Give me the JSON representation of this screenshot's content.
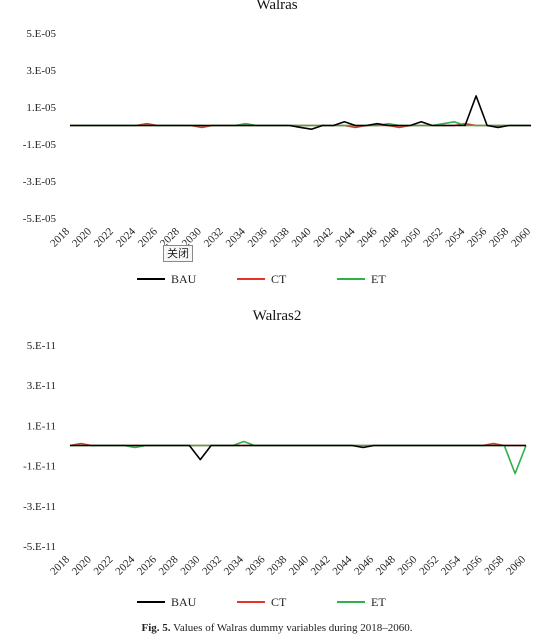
{
  "chart_data": [
    {
      "type": "line",
      "title": "Walras",
      "x": [
        "2018",
        "2019",
        "2020",
        "2021",
        "2022",
        "2023",
        "2024",
        "2025",
        "2026",
        "2027",
        "2028",
        "2029",
        "2030",
        "2031",
        "2032",
        "2033",
        "2034",
        "2035",
        "2036",
        "2037",
        "2038",
        "2039",
        "2040",
        "2041",
        "2042",
        "2043",
        "2044",
        "2045",
        "2046",
        "2047",
        "2048",
        "2049",
        "2050",
        "2051",
        "2052",
        "2053",
        "2054",
        "2055",
        "2056",
        "2057",
        "2058",
        "2059",
        "2060"
      ],
      "tick_labels": [
        "2018",
        "2020",
        "2022",
        "2024",
        "2026",
        "2028",
        "2030",
        "2032",
        "2034",
        "2036",
        "2038",
        "2040",
        "2042",
        "2044",
        "2046",
        "2048",
        "2050",
        "2052",
        "2054",
        "2056",
        "2058",
        "2060"
      ],
      "y_tick_labels": [
        "5.E-05",
        "3.E-05",
        "1.E-05",
        "-1.E-05",
        "-3.E-05",
        "-5.E-05"
      ],
      "ylim": [
        -5e-05,
        5e-05
      ],
      "series": [
        {
          "name": "BAU",
          "color": "#000000",
          "values": [
            0,
            0,
            0,
            0,
            0,
            0,
            0,
            0,
            0,
            0,
            0,
            0,
            0,
            0,
            0,
            0,
            0,
            0,
            0,
            0,
            0,
            -1e-06,
            -2e-06,
            0,
            0,
            2e-06,
            0,
            0,
            1e-06,
            0,
            0,
            0,
            2e-06,
            0,
            0,
            0,
            0,
            1.6e-05,
            0,
            -1e-06,
            0,
            0,
            0
          ]
        },
        {
          "name": "CT",
          "color": "#e8332a",
          "values": [
            0,
            0,
            0,
            0,
            0,
            0,
            0,
            1e-06,
            0,
            0,
            0,
            0,
            -1e-06,
            0,
            0,
            0,
            0,
            0,
            0,
            0,
            0,
            0,
            0,
            0,
            0,
            0,
            -1e-06,
            0,
            0,
            0,
            -1e-06,
            0,
            0,
            0,
            0,
            0,
            1e-06,
            0,
            0,
            0,
            0,
            0,
            0
          ]
        },
        {
          "name": "ET",
          "color": "#2bb24c",
          "values": [
            0,
            0,
            0,
            0,
            0,
            0,
            0,
            0,
            0,
            0,
            0,
            0,
            0,
            0,
            0,
            0,
            1e-06,
            0,
            0,
            0,
            0,
            0,
            0,
            0,
            0,
            0,
            0,
            0,
            0,
            1e-06,
            0,
            0,
            0,
            0,
            1e-06,
            2e-06,
            0,
            0,
            0,
            0,
            0,
            0,
            0
          ]
        }
      ],
      "legend": "bottom"
    },
    {
      "type": "line",
      "title": "Walras2",
      "x": [
        "2018",
        "2019",
        "2020",
        "2021",
        "2022",
        "2023",
        "2024",
        "2025",
        "2026",
        "2027",
        "2028",
        "2029",
        "2030",
        "2031",
        "2032",
        "2033",
        "2034",
        "2035",
        "2036",
        "2037",
        "2038",
        "2039",
        "2040",
        "2041",
        "2042",
        "2043",
        "2044",
        "2045",
        "2046",
        "2047",
        "2048",
        "2049",
        "2050",
        "2051",
        "2052",
        "2053",
        "2054",
        "2055",
        "2056",
        "2057",
        "2058",
        "2059",
        "2060"
      ],
      "tick_labels": [
        "2018",
        "2020",
        "2022",
        "2024",
        "2026",
        "2028",
        "2030",
        "2032",
        "2034",
        "2036",
        "2038",
        "2040",
        "2042",
        "2044",
        "2046",
        "2048",
        "2050",
        "2052",
        "2054",
        "2056",
        "2058",
        "2060"
      ],
      "y_tick_labels": [
        "5.E-11",
        "3.E-11",
        "1.E-11",
        "-1.E-11",
        "-3.E-11",
        "-5.E-11"
      ],
      "ylim": [
        -5e-11,
        5e-11
      ],
      "series": [
        {
          "name": "BAU",
          "color": "#000000",
          "values": [
            0,
            0,
            0,
            0,
            0,
            0,
            0,
            0,
            0,
            0,
            0,
            0,
            -7e-12,
            0,
            0,
            0,
            0,
            0,
            0,
            0,
            0,
            0,
            0,
            0,
            0,
            0,
            0,
            -1e-12,
            0,
            0,
            0,
            0,
            0,
            0,
            0,
            0,
            0,
            0,
            0,
            0,
            0,
            0,
            0
          ]
        },
        {
          "name": "CT",
          "color": "#e8332a",
          "values": [
            0,
            1e-12,
            0,
            0,
            0,
            0,
            0,
            0,
            0,
            0,
            0,
            0,
            0,
            0,
            0,
            0,
            0,
            0,
            0,
            0,
            0,
            0,
            0,
            0,
            0,
            0,
            0,
            0,
            0,
            0,
            0,
            0,
            0,
            0,
            0,
            0,
            0,
            0,
            0,
            1e-12,
            0,
            0,
            0
          ]
        },
        {
          "name": "ET",
          "color": "#2bb24c",
          "values": [
            0,
            0,
            0,
            0,
            0,
            0,
            -1e-12,
            0,
            0,
            0,
            0,
            0,
            0,
            0,
            0,
            0,
            2e-12,
            0,
            0,
            0,
            0,
            0,
            0,
            0,
            0,
            0,
            0,
            0,
            0,
            0,
            0,
            0,
            0,
            0,
            0,
            0,
            0,
            0,
            0,
            0,
            0,
            -1.4e-11,
            0
          ]
        }
      ],
      "legend": "bottom"
    }
  ],
  "tooltip": "关闭",
  "caption": {
    "label": "Fig. 5.",
    "text": "Values of Walras dummy variables during 2018–2060."
  }
}
